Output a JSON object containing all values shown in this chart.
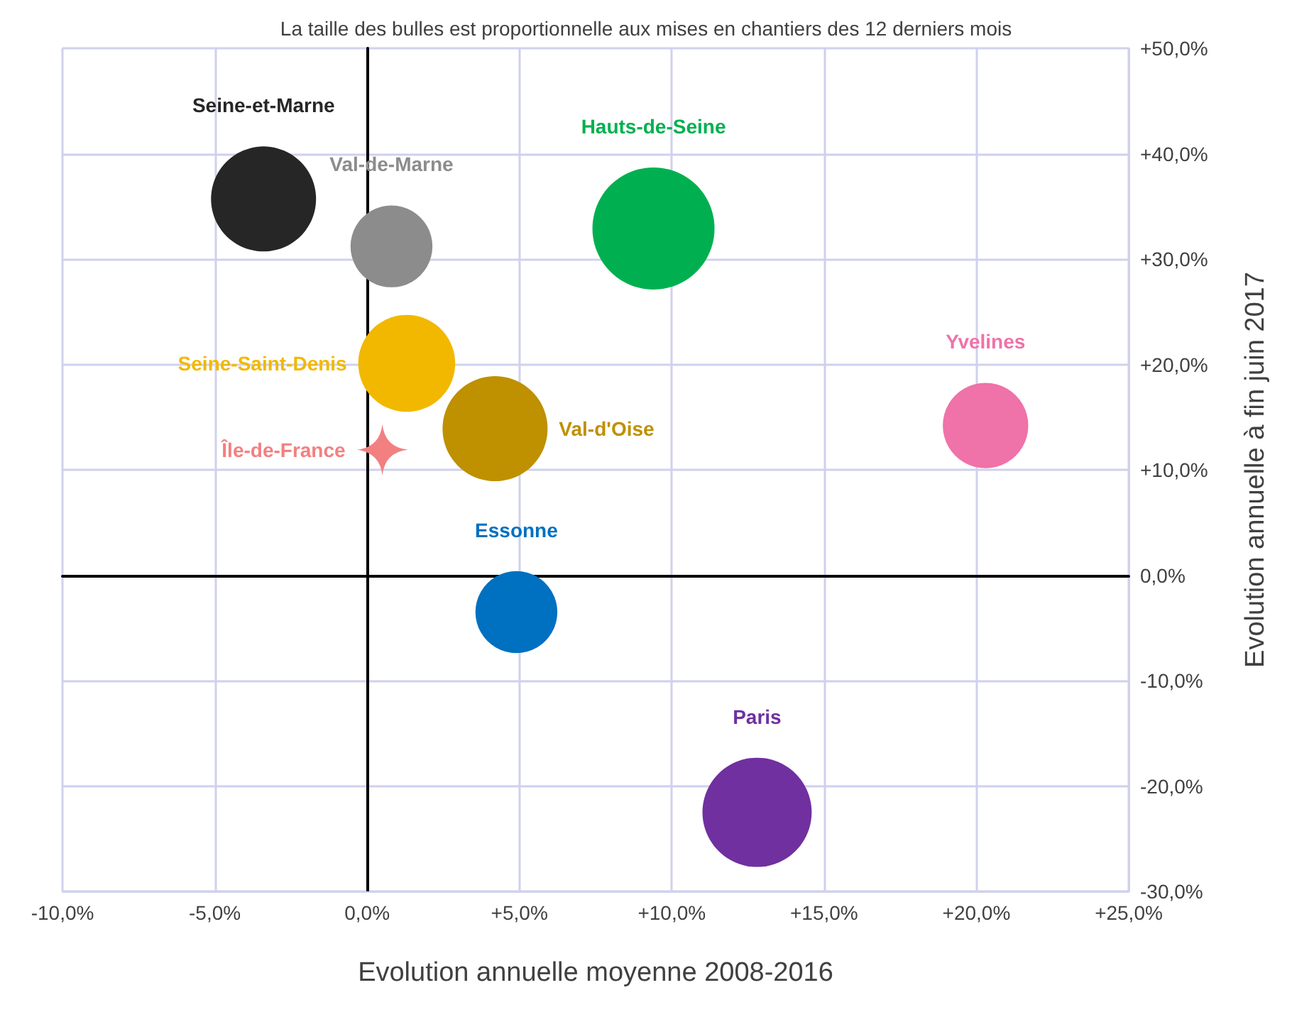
{
  "chart_data": {
    "type": "bubble",
    "title": "La taille des bulles est proportionnelle aux mises en chantiers des 12 derniers mois",
    "xlabel": "Evolution annuelle moyenne 2008-2016",
    "ylabel": "Evolution annuelle à fin juin 2017",
    "xlim": [
      -10,
      25
    ],
    "xticks": [
      {
        "value": -10,
        "label": "-10,0%"
      },
      {
        "value": -5,
        "label": "-5,0%"
      },
      {
        "value": 0,
        "label": "0,0%"
      },
      {
        "value": 5,
        "label": "+5,0%"
      },
      {
        "value": 10,
        "label": "+10,0%"
      },
      {
        "value": 15,
        "label": "+15,0%"
      },
      {
        "value": 20,
        "label": "+20,0%"
      },
      {
        "value": 25,
        "label": "+25,0%"
      }
    ],
    "ylim": [
      -30,
      50
    ],
    "yticks": [
      {
        "value": -30,
        "label": "-30,0%"
      },
      {
        "value": -20,
        "label": "-20,0%"
      },
      {
        "value": -10,
        "label": "-10,0%"
      },
      {
        "value": 0,
        "label": "0,0%"
      },
      {
        "value": 10,
        "label": "+10,0%"
      },
      {
        "value": 20,
        "label": "+20,0%"
      },
      {
        "value": 30,
        "label": "+30,0%"
      },
      {
        "value": 40,
        "label": "+40,0%"
      },
      {
        "value": 50,
        "label": "+50,0%"
      }
    ],
    "grid": true,
    "legend": false,
    "series": [
      {
        "name": "Seine-et-Marne",
        "color": "#262626",
        "x": [
          -3.4
        ],
        "values": [
          35.7
        ],
        "sizes": [
          0.74
        ]
      },
      {
        "name": "Val-de-Marne",
        "color": "#8c8c8c",
        "x": [
          0.8
        ],
        "values": [
          31.2
        ],
        "sizes": [
          0.45
        ]
      },
      {
        "name": "Hauts-de-Seine",
        "color": "#00b050",
        "x": [
          9.4
        ],
        "values": [
          32.9
        ],
        "sizes": [
          1
        ]
      },
      {
        "name": "Seine-Saint-Denis",
        "color": "#f2b800",
        "x": [
          1.3
        ],
        "values": [
          20.1
        ],
        "sizes": [
          0.63
        ]
      },
      {
        "name": "Val-d'Oise",
        "color": "#bf9000",
        "x": [
          4.2
        ],
        "values": [
          13.9
        ],
        "sizes": [
          0.74
        ]
      },
      {
        "name": "Île-de-France",
        "type": "scatter",
        "marker": "star",
        "color": "#f28080",
        "x": [
          0.5
        ],
        "values": [
          11.9
        ]
      },
      {
        "name": "Yvelines",
        "color": "#ef72a8",
        "x": [
          20.3
        ],
        "values": [
          14.2
        ],
        "sizes": [
          0.49
        ]
      },
      {
        "name": "Essonne",
        "color": "#0070c0",
        "x": [
          4.9
        ],
        "values": [
          -3.5
        ],
        "sizes": [
          0.45
        ]
      },
      {
        "name": "Paris",
        "color": "#7030a0",
        "x": [
          12.8
        ],
        "values": [
          -22.5
        ],
        "sizes": [
          0.8
        ]
      }
    ]
  }
}
